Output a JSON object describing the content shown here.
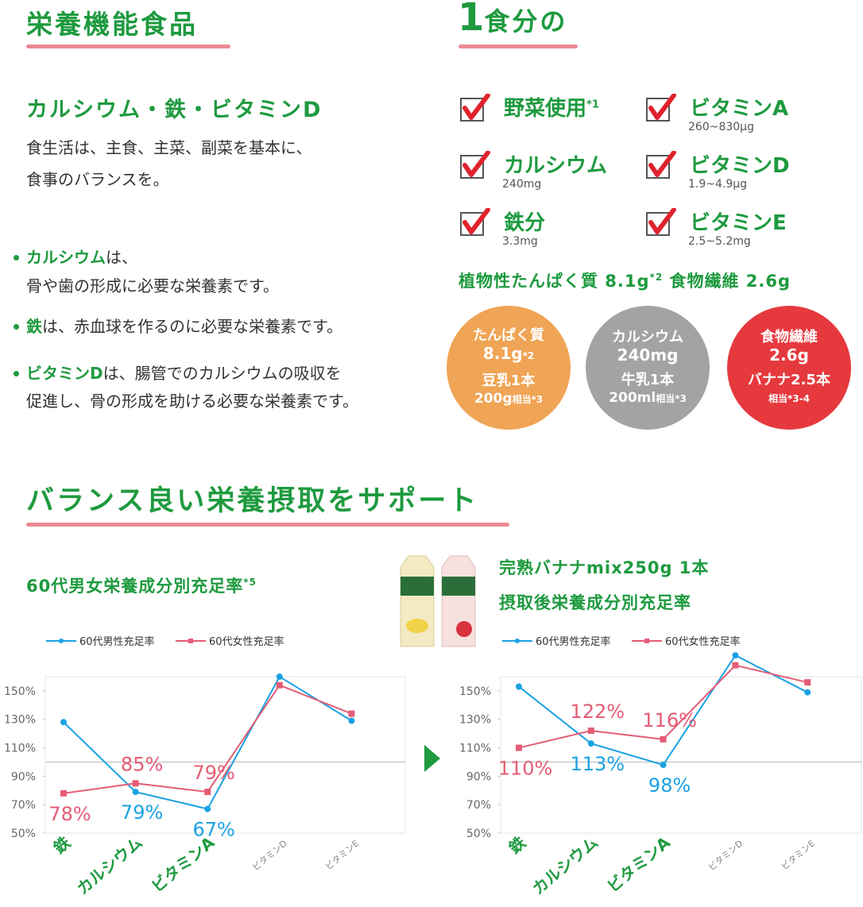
{
  "header": {
    "title": "栄養機能食品"
  },
  "left": {
    "subtitle": "カルシウム・鉄・ビタミンD",
    "intro": [
      "食生活は、主食、主菜、副菜を基本に、",
      "食事のバランスを。"
    ],
    "bullets": [
      {
        "term": "カルシウム",
        "lines": [
          "は、",
          "骨や歯の形成に必要な栄養素です。"
        ]
      },
      {
        "term": "鉄",
        "lines": [
          "は、赤血球を作るのに必要な栄養素です。"
        ]
      },
      {
        "term": "ビタミンD",
        "lines": [
          "は、腸管でのカルシウムの吸収を",
          "促進し、骨の形成を助ける必要な栄養素です。"
        ]
      }
    ]
  },
  "right": {
    "title_number": "1",
    "title_text": "食分の",
    "checklist": [
      {
        "name": "野菜使用",
        "note": "*1"
      },
      {
        "name": "ビタミンA",
        "amount": "260~830μg"
      },
      {
        "name": "カルシウム",
        "amount": "240mg"
      },
      {
        "name": "ビタミンD",
        "amount": "1.9~4.9μg"
      },
      {
        "name": "鉄分",
        "amount": "3.3mg"
      },
      {
        "name": "ビタミンE",
        "amount": "2.5~5.2mg"
      }
    ],
    "summary": {
      "protein": "植物性たんぱく質 8.1g",
      "note": "*2",
      "fiber": "食物繊維 2.6g"
    },
    "circles": [
      {
        "color": "#f0a455",
        "name": "たんぱく質",
        "amount": "8.1g",
        "amount_note": "*2",
        "equiv": "豆乳1本",
        "equiv_detail": "200g",
        "equiv_note": "相当*3"
      },
      {
        "color": "#a3a3a3",
        "name": "カルシウム",
        "amount": "240mg",
        "equiv": "牛乳1本",
        "equiv_detail": "200ml",
        "equiv_note": "相当*3"
      },
      {
        "color": "#e6393e",
        "name": "食物繊維",
        "amount": "2.6g",
        "equiv": "バナナ2.5本",
        "equiv_note": "相当*3-4"
      }
    ]
  },
  "support": {
    "title": "バランス良い栄養摂取をサポート"
  },
  "chart_data": [
    {
      "type": "line",
      "title": [
        "60代男女栄養成分別充足率"
      ],
      "title_note": "*5",
      "categories": [
        "鉄",
        "カルシウム",
        "ビタミンA",
        "ビタミンD",
        "ビタミンE"
      ],
      "category_emphasis": [
        true,
        true,
        true,
        false,
        false
      ],
      "series": [
        {
          "name": "60代男性充足率",
          "color": "#1ba1e2",
          "marker": "circle",
          "values": [
            128,
            79,
            67,
            160,
            129
          ],
          "value_labels": [
            null,
            "79%",
            "67%",
            null,
            null
          ],
          "label_positions": [
            null,
            "below",
            "below",
            null,
            null
          ]
        },
        {
          "name": "60代女性充足率",
          "color": "#e45c75",
          "marker": "square",
          "values": [
            78,
            85,
            79,
            154,
            134
          ],
          "value_labels": [
            "78%",
            "85%",
            "79%",
            null,
            null
          ],
          "label_positions": [
            "below",
            "above",
            "above",
            null,
            null
          ]
        }
      ],
      "ylim": [
        50,
        160
      ],
      "yticks": [
        {
          "value": 50,
          "label": "50%"
        },
        {
          "value": 70,
          "label": "70%"
        },
        {
          "value": 90,
          "label": "90%"
        },
        {
          "value": 110,
          "label": "110%"
        },
        {
          "value": 130,
          "label": "130%"
        },
        {
          "value": 150,
          "label": "150%"
        }
      ],
      "reference_line": 100
    },
    {
      "type": "line",
      "title": [
        "完熟バナナmix250g 1本",
        "摂取後栄養成分別充足率"
      ],
      "categories": [
        "鉄",
        "カルシウム",
        "ビタミンA",
        "ビタミンD",
        "ビタミンE"
      ],
      "category_emphasis": [
        true,
        true,
        true,
        false,
        false
      ],
      "series": [
        {
          "name": "60代男性充足率",
          "color": "#1ba1e2",
          "marker": "circle",
          "values": [
            153,
            113,
            98,
            175,
            149
          ],
          "value_labels": [
            null,
            "113%",
            "98%",
            null,
            null
          ],
          "label_positions": [
            null,
            "below",
            "below",
            null,
            null
          ]
        },
        {
          "name": "60代女性充足率",
          "color": "#e45c75",
          "marker": "square",
          "values": [
            110,
            122,
            116,
            168,
            156
          ],
          "value_labels": [
            "110%",
            "122%",
            "116%",
            null,
            null
          ],
          "label_positions": [
            "below",
            "above",
            "above",
            null,
            null
          ]
        }
      ],
      "ylim": [
        50,
        160
      ],
      "yticks": [
        {
          "value": 50,
          "label": "50%"
        },
        {
          "value": 70,
          "label": "70%"
        },
        {
          "value": 90,
          "label": "90%"
        },
        {
          "value": 110,
          "label": "110%"
        },
        {
          "value": 130,
          "label": "130%"
        },
        {
          "value": 150,
          "label": "150%"
        }
      ],
      "reference_line": 100
    }
  ]
}
